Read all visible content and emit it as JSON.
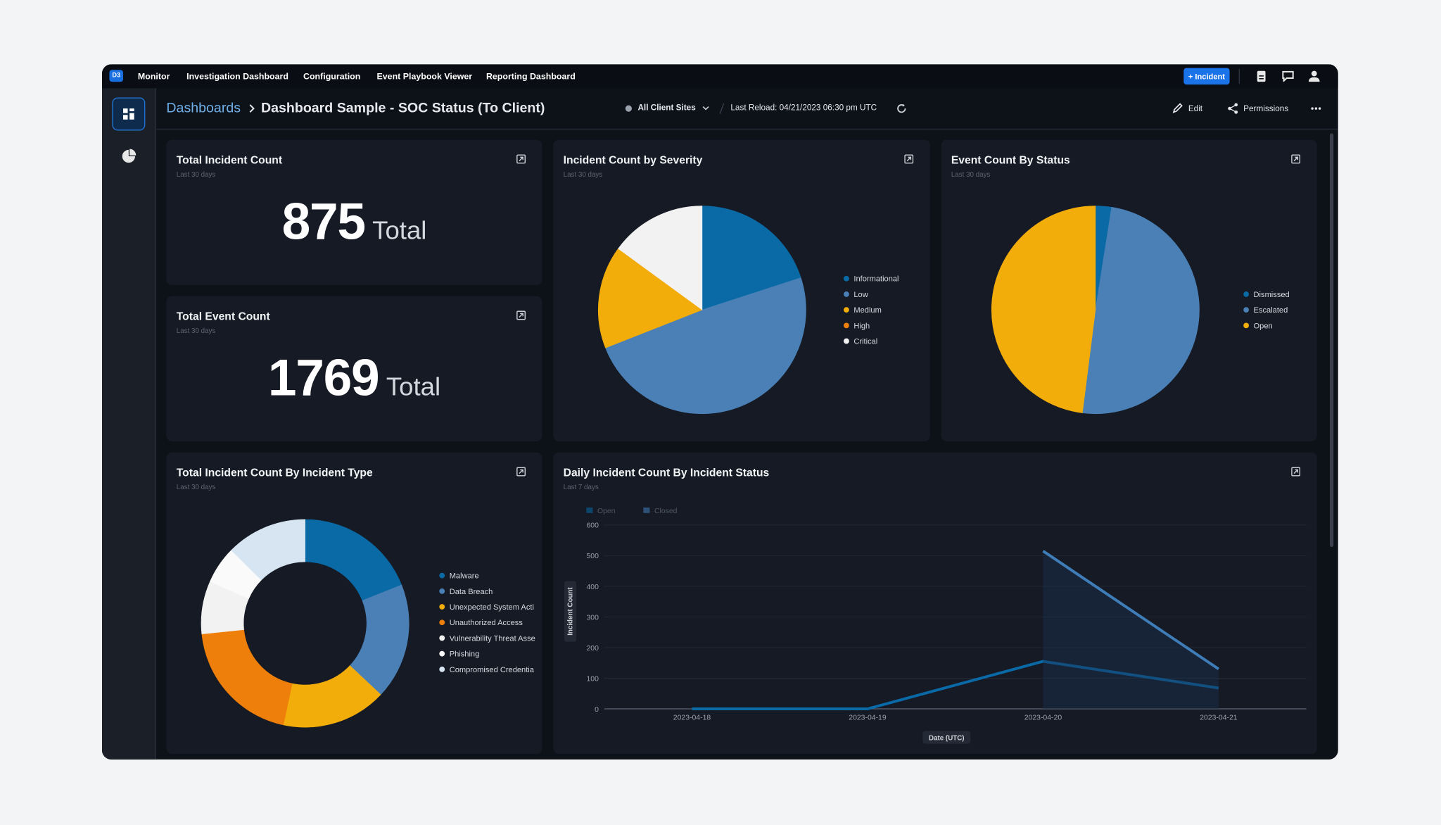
{
  "nav": {
    "logo": "D3",
    "items": [
      "Monitor",
      "Investigation Dashboard",
      "Configuration",
      "Event Playbook Viewer",
      "Reporting Dashboard"
    ],
    "incident_button": "Incident"
  },
  "header": {
    "breadcrumb_root": "Dashboards",
    "title": "Dashboard Sample - SOC Status (To Client)",
    "site_filter": "All Client Sites",
    "last_reload": "Last Reload: 04/21/2023 06:30 pm UTC",
    "edit": "Edit",
    "permissions": "Permissions"
  },
  "kpis": [
    {
      "title": "Total Incident Count",
      "subtitle": "Last 30 days",
      "value": 875,
      "unit": "Total"
    },
    {
      "title": "Total Event Count",
      "subtitle": "Last 30 days",
      "value": 1769,
      "unit": "Total"
    }
  ],
  "chart_data": [
    {
      "type": "pie",
      "title": "Incident Count by Severity",
      "subtitle": "Last 30 days",
      "categories": [
        "Informational",
        "Low",
        "Medium",
        "High",
        "Critical"
      ],
      "values": [
        175,
        429,
        140,
        0,
        131
      ],
      "colors": [
        "#0a6aa6",
        "#4a80b6",
        "#f2ad0b",
        "#ee7f0a",
        "#f2f2f2"
      ]
    },
    {
      "type": "pie",
      "title": "Event Count By Status",
      "subtitle": "Last 30 days",
      "categories": [
        "Dismissed",
        "Escalated",
        "Open"
      ],
      "values": [
        44,
        876,
        849
      ],
      "colors": [
        "#0a6aa6",
        "#4a80b6",
        "#f2ad0b"
      ]
    },
    {
      "type": "donut",
      "title": "Total Incident Count By Incident Type",
      "subtitle": "Last 30 days",
      "categories": [
        "Malware",
        "Data Breach",
        "Unexpected System Acti",
        "Unauthorized Access",
        "Vulnerability Threat Asse",
        "Phishing",
        "Compromised Credentia"
      ],
      "values": [
        166,
        158,
        143,
        175,
        72,
        51,
        110
      ],
      "colors": [
        "#0a6aa6",
        "#4a80b6",
        "#f2ad0b",
        "#ee7f0a",
        "#f2f2f2",
        "#fafafa",
        "#d6e5f1"
      ]
    },
    {
      "type": "line",
      "title": "Daily Incident Count By Incident Status",
      "subtitle": "Last 7 days",
      "x": [
        "2023-04-18",
        "2023-04-19",
        "2023-04-20",
        "2023-04-21"
      ],
      "series": [
        {
          "name": "Open",
          "color": "#0a6aa8",
          "values": [
            0,
            0,
            155,
            68
          ]
        },
        {
          "name": "Closed",
          "color": "#3f7db9",
          "values": [
            null,
            null,
            515,
            130
          ]
        }
      ],
      "ylim": [
        0,
        600
      ],
      "yticks": [
        0,
        100,
        200,
        300,
        400,
        500,
        600
      ],
      "ylabel": "Incident Count",
      "xlabel": "Date (UTC)",
      "grid": true
    }
  ]
}
